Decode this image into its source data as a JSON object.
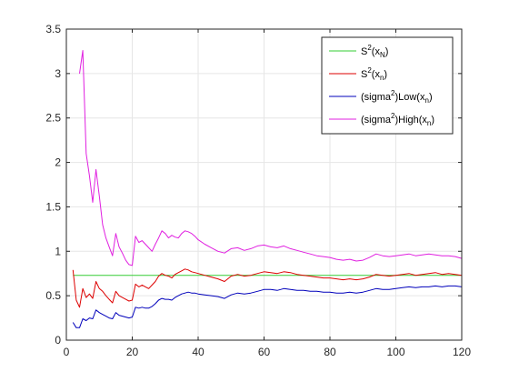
{
  "chart_data": {
    "type": "line",
    "title": "",
    "xlabel": "",
    "ylabel": "",
    "xlim": [
      0,
      120
    ],
    "ylim": [
      0,
      3.5
    ],
    "x_ticks": [
      0,
      20,
      40,
      60,
      80,
      100,
      120
    ],
    "x_tick_labels": [
      "0",
      "20",
      "40",
      "60",
      "80",
      "100",
      "120"
    ],
    "y_ticks": [
      0,
      0.5,
      1,
      1.5,
      2,
      2.5,
      3,
      3.5
    ],
    "y_tick_labels": [
      "0",
      "0.5",
      "1",
      "1.5",
      "2",
      "2.5",
      "3",
      "3.5"
    ],
    "grid": true,
    "legend_position": "top-right",
    "series": [
      {
        "legend_parts": [
          [
            "S",
            ""
          ],
          [
            "2",
            "sup"
          ],
          [
            "(x",
            ""
          ],
          [
            "N",
            "sub"
          ],
          [
            ")",
            ""
          ]
        ],
        "color": "#33cc33",
        "x": [
          2,
          120
        ],
        "y": [
          0.73,
          0.73
        ]
      },
      {
        "legend_parts": [
          [
            "S",
            ""
          ],
          [
            "2",
            "sup"
          ],
          [
            "(x",
            ""
          ],
          [
            "n",
            "sub"
          ],
          [
            ")",
            ""
          ]
        ],
        "color": "#dd0000",
        "x": [
          2,
          3,
          4,
          5,
          6,
          7,
          8,
          9,
          10,
          11,
          12,
          13,
          14,
          15,
          16,
          17,
          18,
          19,
          20,
          21,
          22,
          23,
          24,
          25,
          26,
          27,
          28,
          29,
          30,
          31,
          32,
          33,
          34,
          35,
          36,
          37,
          38,
          39,
          40,
          42,
          44,
          46,
          48,
          50,
          52,
          54,
          56,
          58,
          60,
          62,
          64,
          66,
          68,
          70,
          72,
          74,
          76,
          78,
          80,
          82,
          84,
          86,
          88,
          90,
          92,
          94,
          96,
          98,
          100,
          102,
          104,
          106,
          108,
          110,
          112,
          114,
          116,
          118,
          120
        ],
        "y": [
          0.79,
          0.45,
          0.37,
          0.58,
          0.48,
          0.52,
          0.47,
          0.66,
          0.58,
          0.55,
          0.5,
          0.46,
          0.42,
          0.55,
          0.5,
          0.48,
          0.46,
          0.44,
          0.45,
          0.63,
          0.6,
          0.62,
          0.6,
          0.58,
          0.62,
          0.66,
          0.72,
          0.75,
          0.73,
          0.72,
          0.7,
          0.74,
          0.76,
          0.78,
          0.8,
          0.79,
          0.77,
          0.76,
          0.75,
          0.73,
          0.71,
          0.69,
          0.66,
          0.72,
          0.74,
          0.72,
          0.73,
          0.75,
          0.77,
          0.76,
          0.75,
          0.77,
          0.76,
          0.74,
          0.73,
          0.72,
          0.71,
          0.7,
          0.7,
          0.69,
          0.68,
          0.69,
          0.68,
          0.69,
          0.71,
          0.74,
          0.73,
          0.72,
          0.73,
          0.74,
          0.75,
          0.73,
          0.74,
          0.75,
          0.76,
          0.74,
          0.75,
          0.74,
          0.73
        ]
      },
      {
        "legend_parts": [
          [
            "(sigma",
            ""
          ],
          [
            "2",
            "sup"
          ],
          [
            ")Low(x",
            ""
          ],
          [
            "n",
            "sub"
          ],
          [
            ")",
            ""
          ]
        ],
        "color": "#0000bb",
        "x": [
          2,
          3,
          4,
          5,
          6,
          7,
          8,
          9,
          10,
          11,
          12,
          13,
          14,
          15,
          16,
          17,
          18,
          19,
          20,
          21,
          22,
          23,
          24,
          25,
          26,
          27,
          28,
          29,
          30,
          31,
          32,
          33,
          34,
          35,
          36,
          37,
          38,
          39,
          40,
          42,
          44,
          46,
          48,
          50,
          52,
          54,
          56,
          58,
          60,
          62,
          64,
          66,
          68,
          70,
          72,
          74,
          76,
          78,
          80,
          82,
          84,
          86,
          88,
          90,
          92,
          94,
          96,
          98,
          100,
          102,
          104,
          106,
          108,
          110,
          112,
          114,
          116,
          118,
          120
        ],
        "y": [
          0.2,
          0.14,
          0.14,
          0.24,
          0.22,
          0.25,
          0.24,
          0.34,
          0.31,
          0.29,
          0.27,
          0.25,
          0.24,
          0.31,
          0.28,
          0.27,
          0.26,
          0.25,
          0.26,
          0.37,
          0.36,
          0.37,
          0.36,
          0.36,
          0.38,
          0.41,
          0.45,
          0.47,
          0.46,
          0.46,
          0.45,
          0.48,
          0.5,
          0.52,
          0.53,
          0.54,
          0.53,
          0.53,
          0.52,
          0.51,
          0.5,
          0.49,
          0.47,
          0.51,
          0.53,
          0.52,
          0.53,
          0.55,
          0.57,
          0.57,
          0.56,
          0.58,
          0.57,
          0.56,
          0.56,
          0.55,
          0.55,
          0.54,
          0.54,
          0.53,
          0.53,
          0.54,
          0.53,
          0.54,
          0.56,
          0.58,
          0.57,
          0.57,
          0.58,
          0.59,
          0.6,
          0.59,
          0.6,
          0.6,
          0.61,
          0.6,
          0.61,
          0.61,
          0.6
        ]
      },
      {
        "legend_parts": [
          [
            "(sigma",
            ""
          ],
          [
            "2",
            "sup"
          ],
          [
            ")High(x",
            ""
          ],
          [
            "n",
            "sub"
          ],
          [
            ")",
            ""
          ]
        ],
        "color": "#e020e0",
        "x": [
          4,
          5,
          6,
          7,
          8,
          9,
          10,
          11,
          12,
          13,
          14,
          15,
          16,
          17,
          18,
          19,
          20,
          21,
          22,
          23,
          24,
          25,
          26,
          27,
          28,
          29,
          30,
          31,
          32,
          33,
          34,
          35,
          36,
          37,
          38,
          39,
          40,
          42,
          44,
          46,
          48,
          50,
          52,
          54,
          56,
          58,
          60,
          62,
          64,
          66,
          68,
          70,
          72,
          74,
          76,
          78,
          80,
          82,
          84,
          86,
          88,
          90,
          92,
          94,
          96,
          98,
          100,
          102,
          104,
          106,
          108,
          110,
          112,
          114,
          116,
          118,
          120
        ],
        "y": [
          3.0,
          3.26,
          2.1,
          1.85,
          1.55,
          1.92,
          1.62,
          1.3,
          1.15,
          1.05,
          0.95,
          1.2,
          1.05,
          0.98,
          0.9,
          0.85,
          0.84,
          1.17,
          1.1,
          1.12,
          1.08,
          1.04,
          1.0,
          1.08,
          1.15,
          1.23,
          1.2,
          1.15,
          1.18,
          1.16,
          1.15,
          1.2,
          1.23,
          1.22,
          1.2,
          1.17,
          1.13,
          1.08,
          1.04,
          1.0,
          0.98,
          1.03,
          1.04,
          1.01,
          1.03,
          1.06,
          1.07,
          1.05,
          1.04,
          1.06,
          1.03,
          1.01,
          0.99,
          0.97,
          0.95,
          0.94,
          0.93,
          0.91,
          0.9,
          0.91,
          0.89,
          0.9,
          0.93,
          0.97,
          0.95,
          0.94,
          0.95,
          0.96,
          0.97,
          0.95,
          0.96,
          0.97,
          0.96,
          0.95,
          0.95,
          0.94,
          0.92
        ]
      }
    ]
  }
}
